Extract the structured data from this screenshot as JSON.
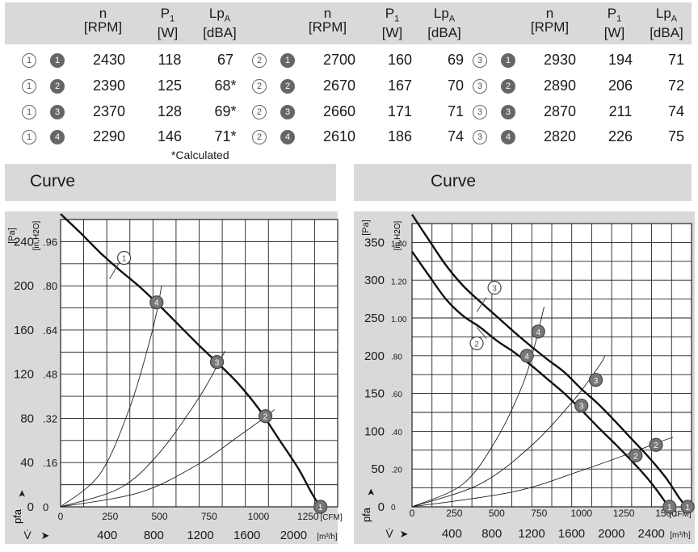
{
  "table": {
    "headers": [
      {
        "main": "n",
        "unit": "[RPM]"
      },
      {
        "main": "P",
        "sub": "1",
        "unit": "[W]"
      },
      {
        "main": "Lp",
        "sub": "A",
        "unit": "[dBA]"
      }
    ],
    "groups": [
      {
        "speed": "1",
        "rows": [
          {
            "curve": "1",
            "n": "2430",
            "p": "118",
            "lp": "67"
          },
          {
            "curve": "2",
            "n": "2390",
            "p": "125",
            "lp": "68*"
          },
          {
            "curve": "3",
            "n": "2370",
            "p": "128",
            "lp": "69*"
          },
          {
            "curve": "4",
            "n": "2290",
            "p": "146",
            "lp": "71*"
          }
        ]
      },
      {
        "speed": "2",
        "rows": [
          {
            "curve": "1",
            "n": "2700",
            "p": "160",
            "lp": "69"
          },
          {
            "curve": "2",
            "n": "2670",
            "p": "167",
            "lp": "70"
          },
          {
            "curve": "3",
            "n": "2660",
            "p": "171",
            "lp": "71"
          },
          {
            "curve": "4",
            "n": "2610",
            "p": "186",
            "lp": "74"
          }
        ]
      },
      {
        "speed": "3",
        "rows": [
          {
            "curve": "1",
            "n": "2930",
            "p": "194",
            "lp": "71"
          },
          {
            "curve": "2",
            "n": "2890",
            "p": "206",
            "lp": "72"
          },
          {
            "curve": "3",
            "n": "2870",
            "p": "211",
            "lp": "74"
          },
          {
            "curve": "4",
            "n": "2820",
            "p": "226",
            "lp": "75"
          }
        ]
      }
    ],
    "footnote": "*Calculated"
  },
  "sections": {
    "left_title": "Curve",
    "right_title": "Curve"
  },
  "chart_data": [
    {
      "type": "line",
      "ylabel_pa": "[Pa]",
      "ylabel_inh2o_main": "[in,H",
      "ylabel_inh2o_sub": "2",
      "ylabel_inh2o_end": "O]",
      "y_symbol": "p",
      "y_symbol_sub": "fa",
      "x_symbol": "V̇",
      "x_unit_cfm": "[CFM]",
      "x_unit_m3h": "[m³/h]",
      "xlim_cfm": [
        0,
        1400
      ],
      "ylim_pa": [
        0,
        260
      ],
      "y_ticks_pa": [
        "0",
        "40",
        "80",
        "120",
        "160",
        "200",
        "240"
      ],
      "y_ticks_inh2o": [
        "0",
        ".16",
        ".32",
        ".48",
        ".64",
        ".80",
        ".96"
      ],
      "x_ticks_cfm": [
        "0",
        "250",
        "500",
        "750",
        "1000",
        "1250"
      ],
      "x_ticks_m3h": [
        "400",
        "800",
        "1200",
        "1600",
        "2000"
      ],
      "fan_curves": [
        {
          "name": "1",
          "points": [
            [
              0,
              265
            ],
            [
              100,
              248
            ],
            [
              200,
              230
            ],
            [
              300,
              214
            ],
            [
              400,
              199
            ],
            [
              500,
              182
            ],
            [
              600,
              164
            ],
            [
              700,
              146
            ],
            [
              800,
              129
            ],
            [
              900,
              111
            ],
            [
              1000,
              89
            ],
            [
              1100,
              62
            ],
            [
              1200,
              35
            ],
            [
              1270,
              12
            ],
            [
              1313,
              0
            ]
          ]
        }
      ],
      "system_curves": [
        {
          "name": "4",
          "points": [
            [
              0,
              0
            ],
            [
              200,
              30
            ],
            [
              350,
              90
            ],
            [
              450,
              150
            ],
            [
              490,
              180
            ],
            [
              510,
              200
            ]
          ]
        },
        {
          "name": "3",
          "points": [
            [
              0,
              0
            ],
            [
              300,
              17
            ],
            [
              500,
              49
            ],
            [
              700,
              99
            ],
            [
              810,
              134
            ],
            [
              830,
              141
            ]
          ]
        },
        {
          "name": "2",
          "points": [
            [
              0,
              0
            ],
            [
              400,
              13
            ],
            [
              700,
              39
            ],
            [
              900,
              64
            ],
            [
              1040,
              82
            ],
            [
              1080,
              88
            ]
          ]
        }
      ],
      "markers": [
        {
          "label": "1",
          "x": 1313,
          "y": 0
        },
        {
          "label": "4",
          "x": 485,
          "y": 185
        },
        {
          "label": "3",
          "x": 790,
          "y": 131
        },
        {
          "label": "2",
          "x": 1035,
          "y": 82
        }
      ],
      "callout": {
        "label": "1",
        "x": 280,
        "y": 218
      }
    },
    {
      "type": "line",
      "ylabel_pa": "[Pa]",
      "ylabel_inh2o_main": "[in,H",
      "ylabel_inh2o_sub": "2",
      "ylabel_inh2o_end": "O]",
      "y_symbol": "p",
      "y_symbol_sub": "fa",
      "x_symbol": "V̇",
      "x_unit_cfm": "[CFM]",
      "x_unit_m3h": "[m³/h]",
      "xlim_cfm": [
        0,
        1650
      ],
      "ylim_pa": [
        0,
        375
      ],
      "y_ticks_pa": [
        "0",
        "50",
        "100",
        "150",
        "200",
        "250",
        "300",
        "350"
      ],
      "y_ticks_inh2o": [
        "0",
        ".20",
        ".40",
        ".60",
        ".80",
        "1.00",
        "1.20",
        "1.40"
      ],
      "x_ticks_cfm": [
        "0",
        "250",
        "500",
        "750",
        "1000",
        "1250",
        "1500"
      ],
      "x_ticks_m3h": [
        "400",
        "800",
        "1200",
        "1600",
        "2000",
        "2400"
      ],
      "fan_curves": [
        {
          "name": "3",
          "points": [
            [
              0,
              387
            ],
            [
              100,
              353
            ],
            [
              200,
              320
            ],
            [
              300,
              293
            ],
            [
              400,
              272
            ],
            [
              500,
              252
            ],
            [
              600,
              232
            ],
            [
              700,
              213
            ],
            [
              800,
              195
            ],
            [
              900,
              178
            ],
            [
              1000,
              156
            ],
            [
              1100,
              136
            ],
            [
              1200,
              113
            ],
            [
              1300,
              89
            ],
            [
              1400,
              65
            ],
            [
              1500,
              38
            ],
            [
              1580,
              11
            ],
            [
              1620,
              0
            ]
          ]
        },
        {
          "name": "2",
          "points": [
            [
              0,
              338
            ],
            [
              100,
              306
            ],
            [
              200,
              275
            ],
            [
              300,
              253
            ],
            [
              400,
              238
            ],
            [
              500,
              220
            ],
            [
              600,
              205
            ],
            [
              700,
              188
            ],
            [
              800,
              169
            ],
            [
              900,
              150
            ],
            [
              1000,
              128
            ],
            [
              1100,
              105
            ],
            [
              1200,
              83
            ],
            [
              1300,
              60
            ],
            [
              1400,
              35
            ],
            [
              1490,
              8
            ],
            [
              1510,
              0
            ]
          ]
        }
      ],
      "system_curves": [
        {
          "name": "4",
          "points": [
            [
              0,
              0
            ],
            [
              300,
              30
            ],
            [
              500,
              90
            ],
            [
              650,
              160
            ],
            [
              720,
              210
            ],
            [
              780,
              265
            ]
          ]
        },
        {
          "name": "3",
          "points": [
            [
              0,
              0
            ],
            [
              400,
              30
            ],
            [
              700,
              80
            ],
            [
              950,
              140
            ],
            [
              1100,
              185
            ],
            [
              1140,
              200
            ]
          ]
        },
        {
          "name": "2",
          "points": [
            [
              0,
              0
            ],
            [
              600,
              20
            ],
            [
              1000,
              48
            ],
            [
              1300,
              72
            ],
            [
              1450,
              85
            ],
            [
              1540,
              92
            ]
          ]
        }
      ],
      "markers": [
        {
          "label": "1",
          "x": 1520,
          "y": 0
        },
        {
          "label": "1",
          "x": 1627,
          "y": 0
        },
        {
          "label": "4",
          "x": 678,
          "y": 200
        },
        {
          "label": "4",
          "x": 745,
          "y": 232
        },
        {
          "label": "3",
          "x": 1000,
          "y": 134
        },
        {
          "label": "3",
          "x": 1085,
          "y": 168
        },
        {
          "label": "2",
          "x": 1320,
          "y": 68
        },
        {
          "label": "2",
          "x": 1440,
          "y": 82
        }
      ],
      "callouts": [
        {
          "label": "3",
          "x": 420,
          "y": 273
        },
        {
          "label": "2",
          "x": 420,
          "y": 225
        }
      ]
    }
  ]
}
